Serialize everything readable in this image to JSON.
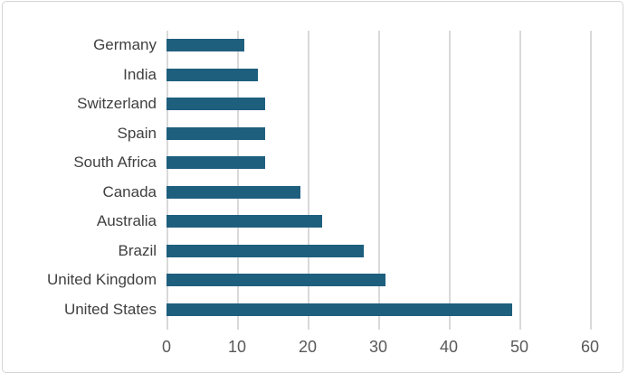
{
  "chart_data": {
    "type": "bar",
    "orientation": "horizontal",
    "title": "",
    "xlabel": "",
    "ylabel": "",
    "categories": [
      "Germany",
      "India",
      "Switzerland",
      "Spain",
      "South Africa",
      "Canada",
      "Australia",
      "Brazil",
      "United Kingdom",
      "United States"
    ],
    "values": [
      11,
      13,
      14,
      14,
      14,
      19,
      22,
      28,
      31,
      49
    ],
    "xlim": [
      0,
      60
    ],
    "x_ticks": [
      0,
      10,
      20,
      30,
      40,
      50,
      60
    ],
    "grid": true,
    "legend": "none",
    "bar_color": "#1F5F7E",
    "gridline_color": "#D9D9D9",
    "tick_label_color": "#595959",
    "category_label_color": "#404040",
    "border_color": "#D5D5D5"
  }
}
